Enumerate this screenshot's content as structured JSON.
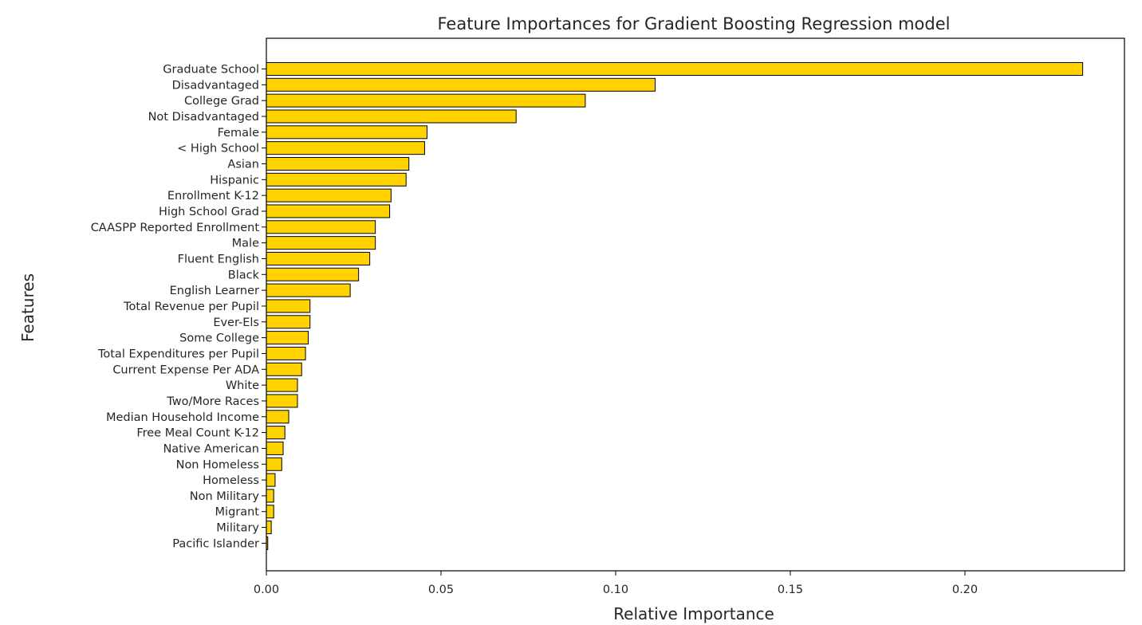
{
  "chart_data": {
    "type": "bar",
    "orientation": "horizontal",
    "title": "Feature Importances for Gradient Boosting  Regression model",
    "xlabel": "Relative Importance",
    "ylabel": "Features",
    "xlim": [
      0.0,
      0.246
    ],
    "xticks": [
      "0.00",
      "0.05",
      "0.10",
      "0.15",
      "0.20"
    ],
    "grid": false,
    "bar_color": "#FFD200",
    "edge_color": "#000000",
    "categories": [
      "Graduate School",
      "Disadvantaged",
      "College Grad",
      "Not Disadvantaged",
      "Female",
      "< High School",
      "Asian",
      "Hispanic",
      "Enrollment K-12",
      "High School Grad",
      "CAASPP Reported Enrollment",
      "Male",
      "Fluent English",
      "Black",
      "English Learner",
      "Total Revenue per Pupil",
      "Ever-Els",
      "Some College",
      "Total Expenditures per Pupil",
      "Current Expense Per ADA",
      "White",
      "Two/More Races",
      "Median Household Income",
      "Free Meal Count K-12",
      "Native American",
      "Non Homeless",
      "Homeless",
      "Non Military",
      "Migrant",
      "Military",
      "Pacific Islander"
    ],
    "values": [
      0.2337,
      0.1113,
      0.0913,
      0.0715,
      0.046,
      0.0453,
      0.0408,
      0.04,
      0.0357,
      0.0353,
      0.0312,
      0.0312,
      0.0296,
      0.0264,
      0.024,
      0.0125,
      0.0125,
      0.012,
      0.0112,
      0.0101,
      0.0089,
      0.0089,
      0.0064,
      0.0053,
      0.0048,
      0.0044,
      0.0025,
      0.0021,
      0.0021,
      0.0014,
      0.0004
    ]
  }
}
